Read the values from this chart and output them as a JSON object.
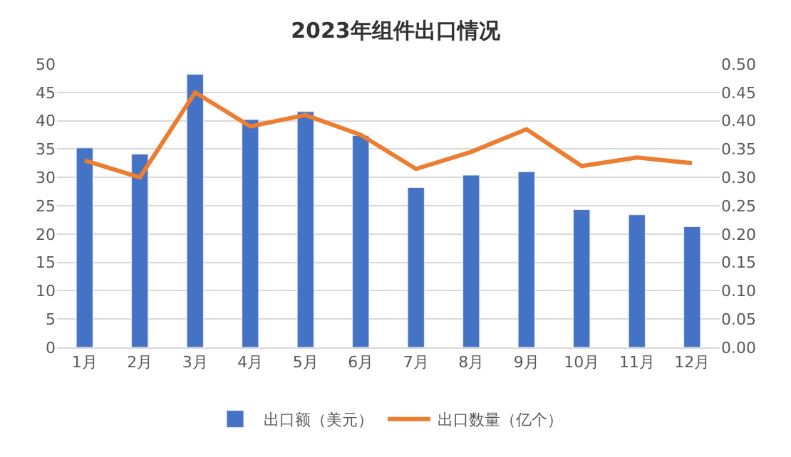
{
  "chart_data": {
    "type": "bar",
    "title": "2023年组件出口情况",
    "categories": [
      "1月",
      "2月",
      "3月",
      "4月",
      "5月",
      "6月",
      "7月",
      "8月",
      "9月",
      "10月",
      "11月",
      "12月"
    ],
    "series": [
      {
        "name": "出口额（美元）",
        "color": "#4472c4",
        "values": [
          35.2,
          34.1,
          48.2,
          40.2,
          41.6,
          37.4,
          28.2,
          30.4,
          31.0,
          24.3,
          23.4,
          21.3
        ]
      },
      {
        "name": "出口数量（亿个）",
        "type": "line",
        "axis": "y2",
        "color": "#ed7d31",
        "values": [
          0.33,
          0.3,
          0.45,
          0.39,
          0.41,
          0.375,
          0.315,
          0.345,
          0.385,
          0.32,
          0.335,
          0.325
        ]
      }
    ],
    "ylim": [
      0,
      50
    ],
    "yticks": [
      0,
      5,
      10,
      15,
      20,
      25,
      30,
      35,
      40,
      45,
      50
    ],
    "y2lim": [
      0,
      0.5
    ],
    "y2ticks": [
      {
        "value": 0,
        "label": "0.00"
      },
      {
        "value": 0.05,
        "label": "0.05"
      },
      {
        "value": 0.1,
        "label": "0.10"
      },
      {
        "value": 0.15,
        "label": "0.15"
      },
      {
        "value": 0.2,
        "label": "0.20"
      },
      {
        "value": 0.25,
        "label": "0.25"
      },
      {
        "value": 0.3,
        "label": "0.30"
      },
      {
        "value": 0.35,
        "label": "0.35"
      },
      {
        "value": 0.4,
        "label": "0.40"
      },
      {
        "value": 0.45,
        "label": "0.45"
      },
      {
        "value": 0.5,
        "label": "0.50"
      }
    ],
    "grid": "y",
    "legend": "bottom",
    "marker": "none",
    "line_style": "solid"
  }
}
